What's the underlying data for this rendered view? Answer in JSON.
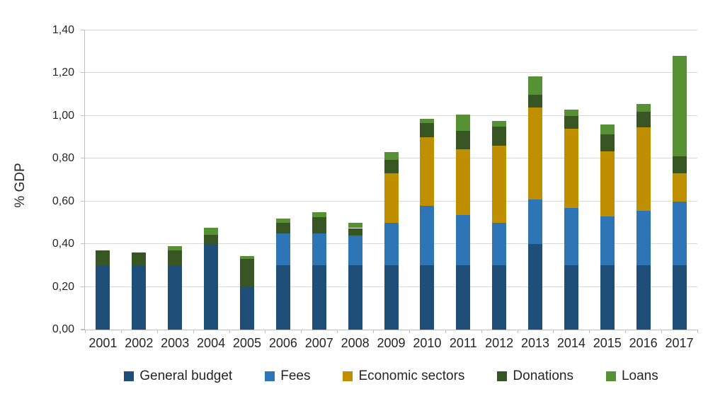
{
  "chart_data": {
    "type": "bar",
    "stacked": true,
    "title": "",
    "xlabel": "",
    "ylabel": "% GDP",
    "ylim": [
      0,
      1.4
    ],
    "ytick_step": 0.2,
    "ytick_labels": [
      "0,00",
      "0,20",
      "0,40",
      "0,60",
      "0,80",
      "1,00",
      "1,20",
      "1,40"
    ],
    "grid": true,
    "legend_position": "bottom",
    "categories": [
      "2001",
      "2002",
      "2003",
      "2004",
      "2005",
      "2006",
      "2007",
      "2008",
      "2009",
      "2010",
      "2011",
      "2012",
      "2013",
      "2014",
      "2015",
      "2016",
      "2017"
    ],
    "series": [
      {
        "name": "General budget",
        "color": "#1F4E79",
        "values": [
          0.3,
          0.3,
          0.3,
          0.4,
          0.2,
          0.3,
          0.3,
          0.3,
          0.3,
          0.3,
          0.3,
          0.3,
          0.4,
          0.3,
          0.3,
          0.3,
          0.3
        ]
      },
      {
        "name": "Fees",
        "color": "#2E75B6",
        "values": [
          0,
          0,
          0,
          0,
          0,
          0.15,
          0.15,
          0.14,
          0.2,
          0.28,
          0.235,
          0.2,
          0.21,
          0.27,
          0.23,
          0.255,
          0.3
        ]
      },
      {
        "name": "Economic sectors",
        "color": "#BF8F00",
        "values": [
          0,
          0,
          0,
          0,
          0,
          0,
          0,
          0,
          0.23,
          0.32,
          0.31,
          0.36,
          0.43,
          0.37,
          0.305,
          0.39,
          0.13
        ]
      },
      {
        "name": "Donations",
        "color": "#375623",
        "values": [
          0.07,
          0.06,
          0.07,
          0.045,
          0.13,
          0.05,
          0.075,
          0.035,
          0.065,
          0.065,
          0.085,
          0.09,
          0.06,
          0.06,
          0.08,
          0.075,
          0.08
        ]
      },
      {
        "name": "Loans",
        "color": "#569133",
        "values": [
          0,
          0,
          0.02,
          0.03,
          0.015,
          0.02,
          0.025,
          0.025,
          0.035,
          0.02,
          0.075,
          0.025,
          0.085,
          0.03,
          0.045,
          0.035,
          0.47
        ]
      }
    ]
  }
}
